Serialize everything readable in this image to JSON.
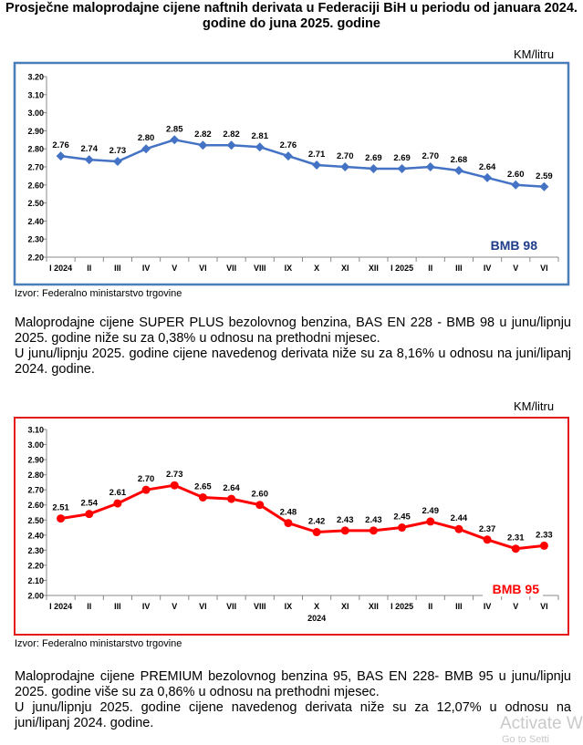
{
  "title": "Prosječne maloprodajne cijene naftnih derivata u Federaciji BiH u periodu od januara 2024. godine do juna 2025. godine",
  "source": "Izvor: Federalno ministarstvo trgovine",
  "watermark": "Activate W",
  "watermark_sub": "Go to Setti",
  "colors": {
    "bmb98": "#4472c4",
    "bmb98_frame": "#4a7ebb",
    "bmb98_label": "#1f3c88",
    "bmb95": "#ff0000",
    "bmb95_frame": "#e61919"
  },
  "chart_data": [
    {
      "type": "line",
      "title": "BMB 98",
      "unit_label": "KM/litru",
      "categories": [
        "I 2024",
        "II",
        "III",
        "IV",
        "V",
        "VI",
        "VII",
        "VIII",
        "IX",
        "X",
        "XI",
        "XII",
        "I 2025",
        "II",
        "III",
        "IV",
        "V",
        "VI"
      ],
      "values": [
        2.76,
        2.74,
        2.73,
        2.8,
        2.85,
        2.82,
        2.82,
        2.81,
        2.76,
        2.71,
        2.7,
        2.69,
        2.69,
        2.7,
        2.68,
        2.64,
        2.6,
        2.59
      ],
      "value_labels": [
        "2.76",
        "2.74",
        "2.73",
        "2.80",
        "2.85",
        "2.82",
        "2.82",
        "2.81",
        "2.76",
        "2.71",
        "2.70",
        "2.69",
        "2.69",
        "2.70",
        "2.68",
        "2.64",
        "2.60",
        "2.59"
      ],
      "ylim": [
        2.2,
        3.2
      ],
      "ystep": 0.1,
      "yticks": [
        "2.20",
        "2.30",
        "2.40",
        "2.50",
        "2.60",
        "2.70",
        "2.80",
        "2.90",
        "3.00",
        "3.10",
        "3.20"
      ],
      "year_label": "",
      "marker": "diamond",
      "grid": false
    },
    {
      "type": "line",
      "title": "BMB 95",
      "unit_label": "KM/litru",
      "categories": [
        "I 2024",
        "II",
        "III",
        "IV",
        "V",
        "VI",
        "VII",
        "VIII",
        "IX",
        "X",
        "XI",
        "XII",
        "I 2025",
        "II",
        "III",
        "IV",
        "V",
        "VI"
      ],
      "values": [
        2.51,
        2.54,
        2.61,
        2.7,
        2.73,
        2.65,
        2.64,
        2.6,
        2.48,
        2.42,
        2.43,
        2.43,
        2.45,
        2.49,
        2.44,
        2.37,
        2.31,
        2.33
      ],
      "value_labels": [
        "2.51",
        "2.54",
        "2.61",
        "2.70",
        "2.73",
        "2.65",
        "2.64",
        "2.60",
        "2.48",
        "2.42",
        "2.43",
        "2.43",
        "2.45",
        "2.49",
        "2.44",
        "2.37",
        "2.31",
        "2.33"
      ],
      "ylim": [
        2.0,
        3.1
      ],
      "ystep": 0.1,
      "yticks": [
        "2.00",
        "2.10",
        "2.20",
        "2.30",
        "2.40",
        "2.50",
        "2.60",
        "2.70",
        "2.80",
        "2.90",
        "3.00",
        "3.10"
      ],
      "year_label": "2024",
      "marker": "circle",
      "grid": false
    }
  ],
  "paragraph98": [
    "Maloprodajne cijene SUPER PLUS bezolovnog benzina, BAS EN 228 - BMB 98 u junu/lipnju 2025. godine niže su za 0,38% u odnosu na prethodni mjesec.",
    "U junu/lipnju 2025. godine cijene navedenog derivata niže su za 8,16% u odnosu na juni/lipanj 2024. godine."
  ],
  "paragraph95": [
    "Maloprodajne cijene PREMIUM bezolovnog benzina 95, BAS EN 228- BMB 95 u junu/lipnju 2025. godine više su za 0,86% u odnosu na prethodni mjesec.",
    "U junu/lipnju 2025. godine cijene navedenog derivata niže su za 12,07% u odnosu na juni/lipanj 2024. godine."
  ]
}
